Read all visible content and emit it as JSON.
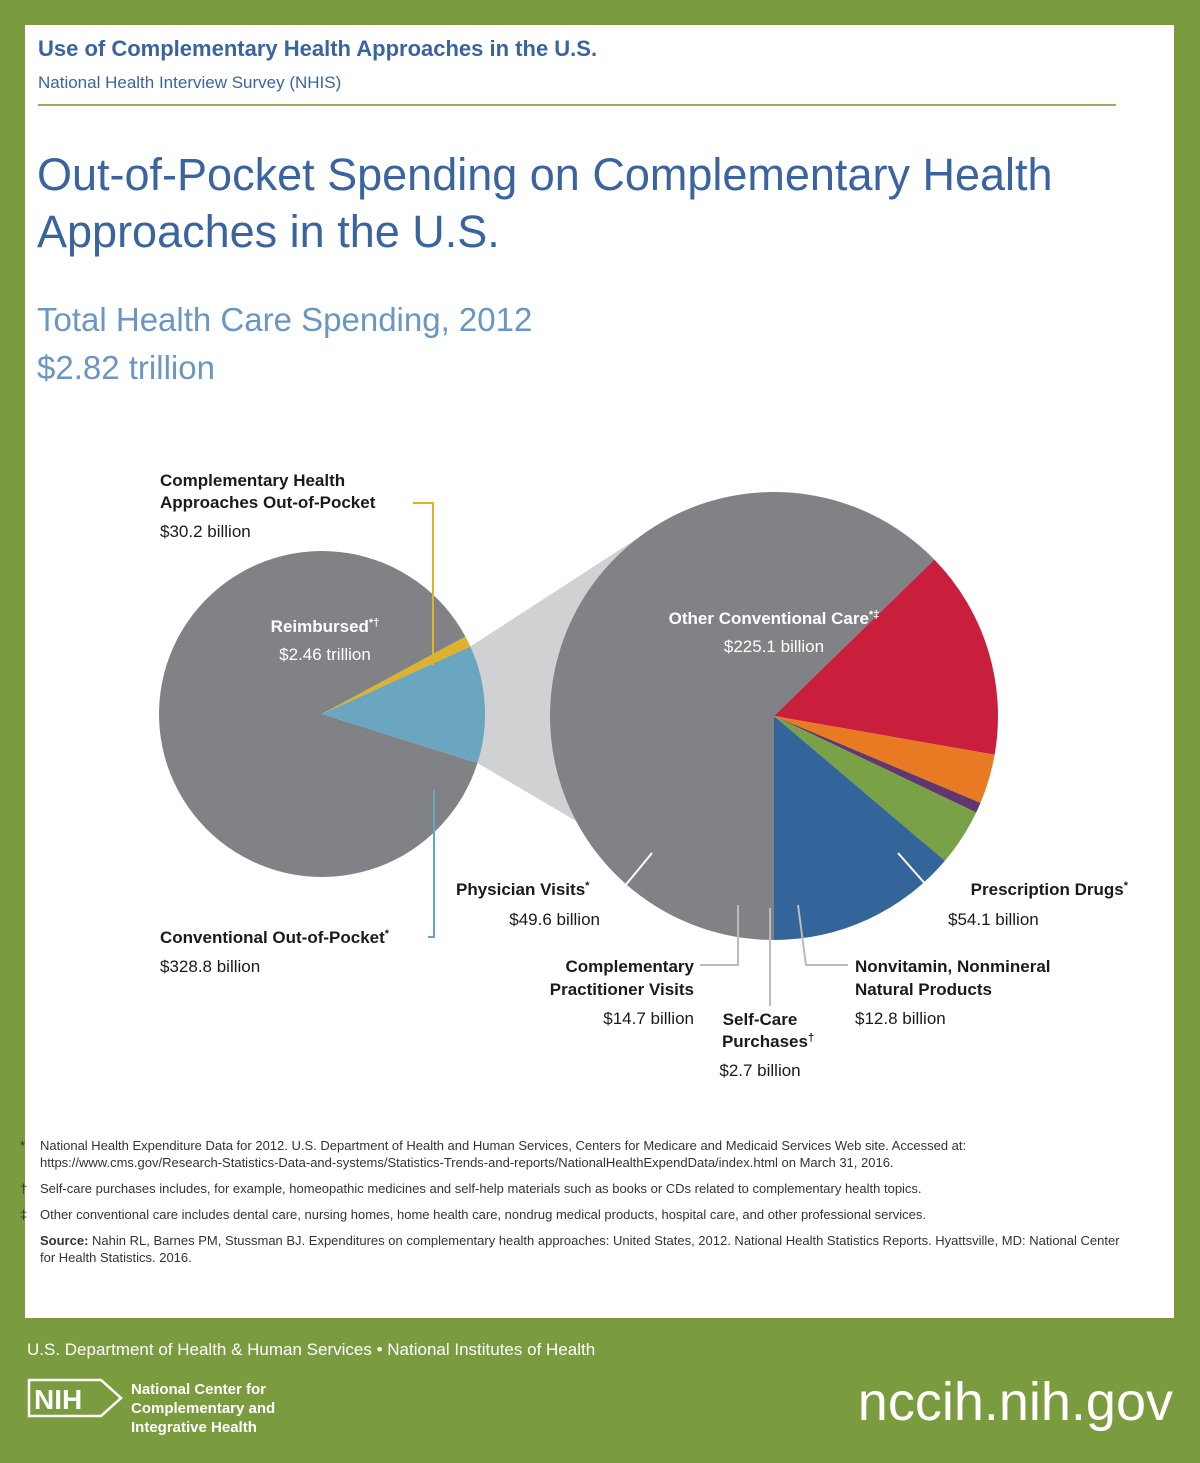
{
  "header": {
    "title": "Use of Complementary Health Approaches in the U.S.",
    "subtitle": "National Health Interview Survey (NHIS)"
  },
  "main_title": "Out-of-Pocket Spending on Complementary Health Approaches in the U.S.",
  "subtitle": {
    "line1": "Total Health Care Spending, 2012",
    "line2": "$2.82 trillion"
  },
  "chart_data": {
    "type": "pie",
    "title": "Total Health Care Spending, 2012",
    "total": "$2.82 trillion",
    "total_trillions": 2.82,
    "units": "billion USD",
    "colors": {
      "gray": "#818285",
      "connector": "#d0d1d3",
      "cop": "#6aa6c0",
      "cha": "#deb22c",
      "physician": "#33659a",
      "comp_pract": "#79a145",
      "self_care": "#60386e",
      "nvnm": "#e87a24",
      "rx": "#c91f3d",
      "leader": "#999999"
    },
    "main_pie": {
      "slices": [
        {
          "key": "reimbursed",
          "name": "Reimbursed",
          "sup": "*†",
          "value_label": "$2.46 trillion",
          "value": 2461
        },
        {
          "key": "cha",
          "name_lines": [
            "Complementary Health",
            "Approaches Out-of-Pocket"
          ],
          "value_label": "$30.2 billion",
          "value": 30.2
        },
        {
          "key": "cop",
          "name": "Conventional Out-of-Pocket",
          "sup": "*",
          "value_label": "$328.8 billion",
          "value": 328.8
        }
      ]
    },
    "breakdown_pie": {
      "of": "Conventional Out-of-Pocket",
      "slices": [
        {
          "key": "other",
          "name": "Other Conventional Care",
          "sup": "*‡",
          "value_label": "$225.1 billion",
          "value": 225.1
        },
        {
          "key": "rx",
          "name": "Prescription Drugs",
          "sup": "*",
          "value_label": "$54.1 billion",
          "value": 54.1
        },
        {
          "key": "nvnm",
          "name_lines": [
            "Nonvitamin, Nonmineral",
            "Natural Products"
          ],
          "value_label": "$12.8 billion",
          "value": 12.8
        },
        {
          "key": "self",
          "name_lines": [
            "Self-Care",
            "Purchases"
          ],
          "sup": "†",
          "value_label": "$2.7 billion",
          "value": 2.7
        },
        {
          "key": "comp",
          "name_lines": [
            "Complementary",
            "Practitioner Visits"
          ],
          "value_label": "$14.7 billion",
          "value": 14.7
        },
        {
          "key": "phys",
          "name": "Physician Visits",
          "sup": "*",
          "value_label": "$49.6 billion",
          "value": 49.6
        }
      ]
    }
  },
  "footnotes": [
    {
      "symbol": "*",
      "text": "National Health Expenditure Data for 2012. U.S. Department of Health and Human Services, Centers for Medicare and Medicaid Services Web site. Accessed at: https://www.cms.gov/Research-Statistics-Data-and-systems/Statistics-Trends-and-reports/NationalHealthExpendData/index.html on March 31, 2016."
    },
    {
      "symbol": "†",
      "text": "Self-care purchases includes, for example, homeopathic medicines and self-help materials such as books or CDs related to complementary health topics."
    },
    {
      "symbol": "‡",
      "text": "Other conventional care includes dental care, nursing homes, home health care, nondrug medical products, hospital care, and other professional services."
    }
  ],
  "source": {
    "label": "Source:",
    "text": "Nahin RL, Barnes PM, Stussman BJ. Expenditures on complementary health approaches: United States, 2012. National Health Statistics Reports. Hyattsville, MD: National Center for Health Statistics. 2016."
  },
  "footer": {
    "agencies": "U.S. Department of Health & Human Services • National Institutes of Health",
    "logo_text": "NIH",
    "center_lines": [
      "National Center for",
      "Complementary and",
      "Integrative Health"
    ],
    "website": "nccih.nih.gov"
  }
}
